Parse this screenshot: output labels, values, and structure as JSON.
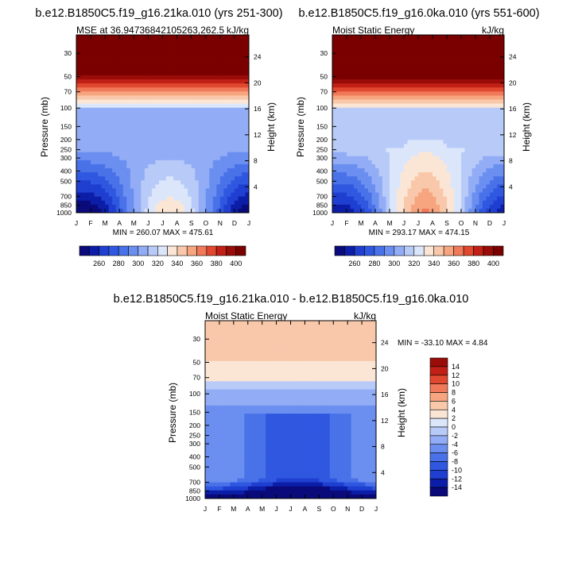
{
  "chart_data": [
    {
      "type": "heatmap",
      "title": "b.e12.B1850C5.f19_g16.21ka.010 (yrs 251-300)",
      "left_label": "MSE at 36.94736842105263,262.5",
      "right_label": "kJ/kg",
      "xlabel": "",
      "ylabel": "Pressure (mb)",
      "y2label": "Height (km)",
      "x_ticks": [
        "J",
        "F",
        "M",
        "A",
        "M",
        "J",
        "J",
        "A",
        "S",
        "O",
        "N",
        "D",
        "J"
      ],
      "y_ticks": [
        "30",
        "50",
        "70",
        "100",
        "150",
        "200",
        "250",
        "300",
        "400",
        "500",
        "700",
        "850",
        "1000"
      ],
      "y2_ticks": [
        "24",
        "20",
        "16",
        "12",
        "8",
        "4"
      ],
      "stats": "MIN = 260.07   MAX = 475.61",
      "colorbar_labels": [
        "260",
        "280",
        "300",
        "320",
        "340",
        "360",
        "380",
        "400"
      ],
      "levels": [
        250,
        260,
        270,
        280,
        290,
        300,
        310,
        320,
        330,
        340,
        350,
        360,
        370,
        380,
        390,
        400,
        410
      ],
      "ylim": [
        1000,
        20
      ]
    },
    {
      "type": "heatmap",
      "title": "b.e12.B1850C5.f19_g16.0ka.010 (yrs 551-600)",
      "left_label": "Moist Static Energy",
      "right_label": "kJ/kg",
      "xlabel": "",
      "ylabel": "Pressure (mb)",
      "y2label": "Height (km)",
      "x_ticks": [
        "J",
        "F",
        "M",
        "A",
        "M",
        "J",
        "J",
        "A",
        "S",
        "O",
        "N",
        "D",
        "J"
      ],
      "y_ticks": [
        "30",
        "50",
        "70",
        "100",
        "150",
        "200",
        "250",
        "300",
        "400",
        "500",
        "700",
        "850",
        "1000"
      ],
      "y2_ticks": [
        "24",
        "20",
        "16",
        "12",
        "8",
        "4"
      ],
      "stats": "MIN = 293.17   MAX = 474.15",
      "colorbar_labels": [
        "260",
        "280",
        "300",
        "320",
        "340",
        "360",
        "380",
        "400"
      ],
      "levels": [
        250,
        260,
        270,
        280,
        290,
        300,
        310,
        320,
        330,
        340,
        350,
        360,
        370,
        380,
        390,
        400,
        410
      ],
      "ylim": [
        1000,
        20
      ]
    },
    {
      "type": "heatmap",
      "title": "b.e12.B1850C5.f19_g16.21ka.010 - b.e12.B1850C5.f19_g16.0ka.010",
      "left_label": "Moist Static Energy",
      "right_label": "kJ/kg",
      "xlabel": "",
      "ylabel": "Pressure (mb)",
      "y2label": "Height (km)",
      "x_ticks": [
        "J",
        "F",
        "M",
        "A",
        "M",
        "J",
        "J",
        "A",
        "S",
        "O",
        "N",
        "D",
        "J"
      ],
      "y_ticks": [
        "30",
        "50",
        "70",
        "100",
        "150",
        "200",
        "250",
        "300",
        "400",
        "500",
        "700",
        "850",
        "1000"
      ],
      "y2_ticks": [
        "24",
        "20",
        "16",
        "12",
        "8",
        "4"
      ],
      "stats": "MIN = -33.10  MAX =   4.84",
      "colorbar_labels": [
        "14",
        "12",
        "10",
        "8",
        "6",
        "4",
        "2",
        "0",
        "-2",
        "-4",
        "-6",
        "-8",
        "-10",
        "-12",
        "-14"
      ],
      "levels": [
        -16,
        -14,
        -12,
        -10,
        -8,
        -6,
        -4,
        -2,
        0,
        2,
        4,
        6,
        8,
        10,
        12,
        14,
        16
      ],
      "ylim": [
        1000,
        20
      ]
    }
  ],
  "palette": [
    "#0a0a7a",
    "#0c1ea8",
    "#1f3fd1",
    "#2f57e0",
    "#4a72e8",
    "#6b8ff0",
    "#92adf5",
    "#b8cbf8",
    "#dce6fb",
    "#fbe6d6",
    "#f9c8ab",
    "#f6a57f",
    "#f0795a",
    "#e0482f",
    "#c02016",
    "#9a0c08",
    "#7a0000"
  ],
  "diff_palette": [
    "#0a0a7a",
    "#0c1ea8",
    "#1f3fd1",
    "#2f57e0",
    "#4a72e8",
    "#6b8ff0",
    "#92adf5",
    "#b8cbf8",
    "#dce6fb",
    "#fbe6d6",
    "#f9c8ab",
    "#f6a57f",
    "#f0795a",
    "#e0482f",
    "#c02016",
    "#9a0c08"
  ]
}
